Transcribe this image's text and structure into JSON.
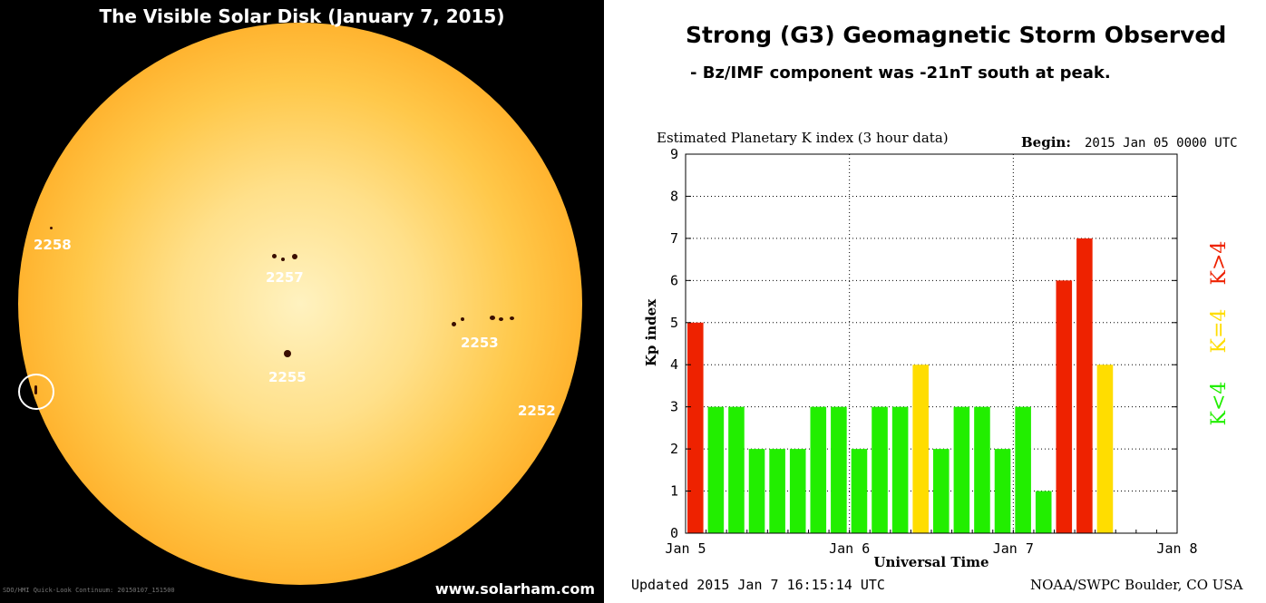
{
  "left": {
    "title": "The Visible Solar Disk (January 7, 2015)",
    "regions": [
      "2258",
      "2257",
      "2253",
      "2255",
      "2252"
    ],
    "website": "www.solarham.com",
    "instrument_caption": "SDO/HMI Quick-Look Continuum: 20150107_151500"
  },
  "right": {
    "headline": "Strong (G3) Geomagnetic Storm Observed",
    "subline": "- Bz/IMF component was -21nT south at peak.",
    "updated": "Updated 2015 Jan  7 16:15:14 UTC",
    "credit": "NOAA/SWPC Boulder, CO USA"
  },
  "chart_data": {
    "type": "bar",
    "title": "Estimated Planetary K index (3 hour data)",
    "begin_label": "Begin:",
    "begin_value": "2015 Jan 05 0000 UTC",
    "xlabel": "Universal Time",
    "ylabel": "Kp index",
    "ylim": [
      0,
      9
    ],
    "yticks": [
      "0",
      "1",
      "2",
      "3",
      "4",
      "5",
      "6",
      "7",
      "8",
      "9"
    ],
    "xticks": [
      "Jan 5",
      "Jan 6",
      "Jan 7",
      "Jan 8"
    ],
    "bars_per_day": 8,
    "total_slots": 24,
    "grid": true,
    "values": [
      5,
      3,
      3,
      2,
      2,
      2,
      3,
      3,
      2,
      3,
      3,
      4,
      2,
      3,
      3,
      2,
      3,
      1,
      6,
      7,
      4
    ],
    "legend": [
      {
        "label": "K<4",
        "color": "#22ee00"
      },
      {
        "label": "K=4",
        "color": "#ffdd00"
      },
      {
        "label": "K>4",
        "color": "#ee2200"
      }
    ],
    "colors": {
      "low": "#22ee00",
      "mid": "#ffdd00",
      "high": "#ee2200"
    }
  }
}
